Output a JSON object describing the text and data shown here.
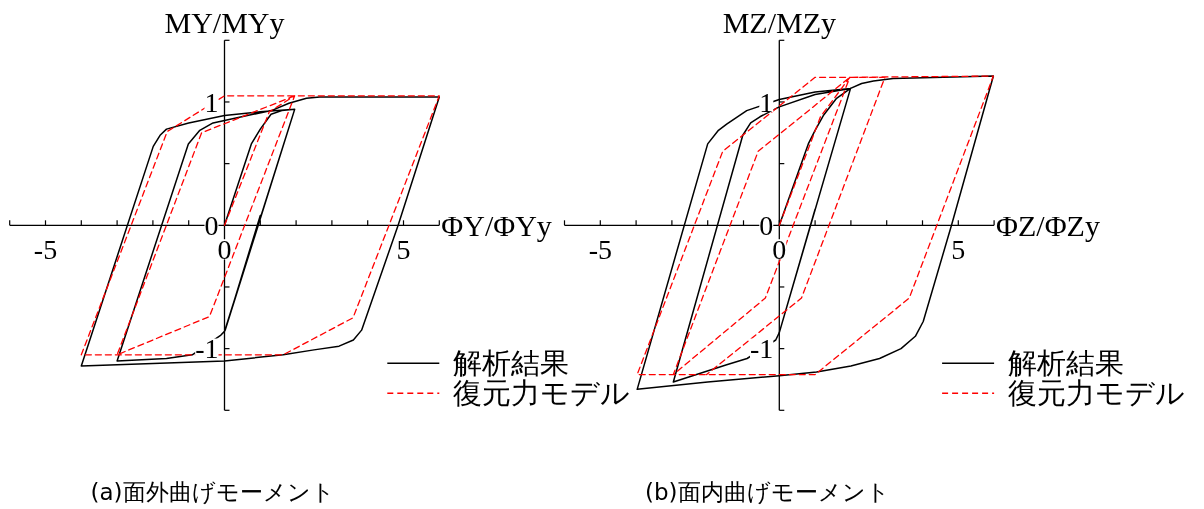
{
  "chart_data": [
    {
      "type": "line",
      "title": "(a)面外曲げモーメント",
      "xlabel": "ΦY/ΦYy",
      "ylabel": "MY/MYy",
      "xlim": [
        -6,
        6
      ],
      "ylim": [
        -1.5,
        1.5
      ],
      "xticks": [
        {
          "value": -6,
          "label": null
        },
        -5,
        {
          "value": -4,
          "label": null
        },
        {
          "value": -3,
          "label": null
        },
        {
          "value": -2,
          "label": null
        },
        {
          "value": -1,
          "label": null
        },
        0,
        {
          "value": 1,
          "label": null
        },
        {
          "value": 2,
          "label": null
        },
        {
          "value": 3,
          "label": null
        },
        {
          "value": 4,
          "label": null
        },
        5,
        {
          "value": 6,
          "label": null
        }
      ],
      "yticks": [
        {
          "value": -1.5,
          "label": null
        },
        -1,
        {
          "value": -0.5,
          "label": null
        },
        0,
        {
          "value": 0.5,
          "label": null
        },
        1,
        {
          "value": 1.5,
          "label": null
        }
      ],
      "legend": "bottom right",
      "series": [
        {
          "name": "解析結果",
          "color": "#000000",
          "line_style": "solid",
          "x": [
            0,
            0.75,
            1.0,
            1.3,
            1.6,
            1.96,
            0,
            -0.1,
            -0.9,
            -1.62,
            -3.0,
            -1.01,
            -0.69,
            -0.32,
            0,
            0.8,
            1.31,
            1.8,
            2.29,
            2.66,
            6.0,
            4.85,
            3.83,
            3.6,
            3.2,
            2.5,
            1.64,
            0,
            -2.0,
            -4.0,
            -1.99,
            -1.8,
            -1.62,
            -1.0,
            0,
            1.0,
            1.96,
            0.02,
            1.0
          ],
          "values": [
            0,
            0.66,
            0.78,
            0.9,
            0.93,
            0.94,
            -0.86,
            -0.89,
            -1.05,
            -1.08,
            -1.1,
            0.66,
            0.77,
            0.83,
            0.85,
            0.9,
            0.93,
            0.99,
            1.03,
            1.04,
            1.04,
            0,
            -0.85,
            -0.93,
            -0.98,
            -1.01,
            -1.05,
            -1.1,
            -1.12,
            -1.14,
            0.64,
            0.73,
            0.78,
            0.83,
            0.89,
            0.92,
            0.94,
            -0.85,
            0.08
          ]
        },
        {
          "name": "復元力モデル",
          "color": "#ff0000",
          "line_style": "dashed",
          "x": [
            0,
            1.25,
            1.96,
            -0.42,
            -3.0,
            -0.64,
            1.96,
            6.0,
            3.59,
            1.64,
            -4.0,
            -1.6,
            0,
            1.96
          ],
          "values": [
            0,
            0.92,
            1.05,
            -0.74,
            -1.05,
            0.75,
            1.05,
            1.05,
            -0.75,
            -1.05,
            -1.05,
            0.76,
            1.05,
            1.05
          ]
        }
      ]
    },
    {
      "type": "line",
      "title": "(b)面内曲げモーメント",
      "xlabel": "ΦZ/ΦZy",
      "ylabel": "MZ/MZy",
      "xlim": [
        -6,
        6
      ],
      "ylim": [
        -1.5,
        1.5
      ],
      "xticks": [
        {
          "value": -6,
          "label": null
        },
        -5,
        {
          "value": -4,
          "label": null
        },
        {
          "value": -3,
          "label": null
        },
        {
          "value": -2,
          "label": null
        },
        {
          "value": -1,
          "label": null
        },
        0,
        {
          "value": 1,
          "label": null
        },
        {
          "value": 2,
          "label": null
        },
        {
          "value": 3,
          "label": null
        },
        {
          "value": 4,
          "label": null
        },
        5,
        {
          "value": 6,
          "label": null
        }
      ],
      "yticks": [
        {
          "value": -1.5,
          "label": null
        },
        -1,
        {
          "value": -0.5,
          "label": null
        },
        0,
        {
          "value": 0.5,
          "label": null
        },
        1,
        {
          "value": 1.5,
          "label": null
        }
      ],
      "legend": "bottom right",
      "series": [
        {
          "name": "解析結果",
          "color": "#000000",
          "line_style": "solid",
          "x": [
            0,
            0.81,
            1.0,
            1.23,
            1.6,
            1.99,
            0,
            -0.1,
            -0.9,
            -1.47,
            -2.96,
            -1.02,
            -0.8,
            -0.54,
            0,
            1.0,
            1.99,
            2.3,
            2.63,
            3.18,
            5.98,
            4.81,
            4.02,
            3.8,
            3.4,
            2.8,
            2.0,
            1.04,
            0,
            -2.0,
            -3.97,
            -2.0,
            -1.7,
            -1.47,
            -0.91,
            0,
            1.0,
            1.99,
            0,
            1.0
          ],
          "values": [
            0,
            0.66,
            0.77,
            0.89,
            1.03,
            1.11,
            -0.87,
            -0.93,
            -1.08,
            -1.13,
            -1.27,
            0.73,
            0.83,
            0.88,
            0.96,
            1.06,
            1.11,
            1.15,
            1.17,
            1.19,
            1.21,
            0,
            -0.78,
            -0.9,
            -1.0,
            -1.08,
            -1.14,
            -1.19,
            -1.22,
            -1.27,
            -1.33,
            0.66,
            0.77,
            0.82,
            0.93,
            1.02,
            1.08,
            1.11,
            -0.87,
            0.13
          ]
        },
        {
          "name": "復元力モデル",
          "color": "#ff0000",
          "line_style": "dashed",
          "x": [
            0,
            1.15,
            1.97,
            -0.39,
            -2.96,
            -0.59,
            1.97,
            5.98,
            3.63,
            1.0,
            -3.97,
            -1.58,
            1.0,
            2.95,
            0.62,
            -2.03
          ],
          "values": [
            0,
            0.88,
            1.2,
            -0.59,
            -1.21,
            0.6,
            1.2,
            1.21,
            -0.59,
            -1.21,
            -1.21,
            0.6,
            1.2,
            1.2,
            -0.59,
            -1.21
          ]
        }
      ]
    }
  ]
}
